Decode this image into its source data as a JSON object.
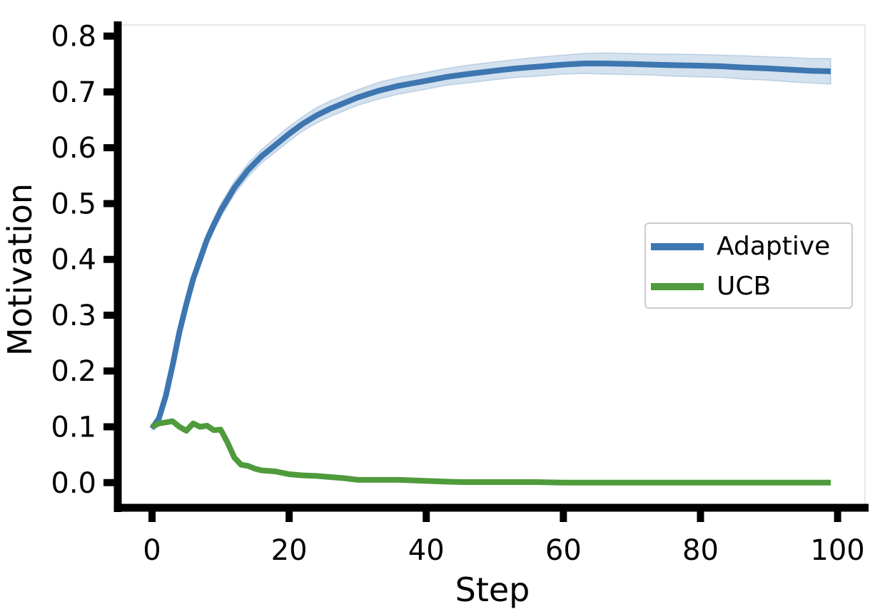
{
  "chart_data": {
    "type": "line",
    "title": "",
    "xlabel": "Step",
    "ylabel": "Motivation",
    "xlim": [
      -5,
      104
    ],
    "ylim": [
      -0.045,
      0.82
    ],
    "xticks": [
      0,
      20,
      40,
      60,
      80,
      100
    ],
    "yticks": [
      0.0,
      0.1,
      0.2,
      0.3,
      0.4,
      0.5,
      0.6,
      0.7,
      0.8
    ],
    "grid": false,
    "legend_position": "center-right",
    "series": [
      {
        "name": "Adaptive",
        "color": "#3d76b0",
        "band_color": "#3d76b0",
        "x": [
          0,
          1,
          2,
          3,
          4,
          5,
          6,
          7,
          8,
          9,
          10,
          12,
          14,
          16,
          18,
          20,
          22,
          24,
          26,
          28,
          30,
          33,
          36,
          40,
          43,
          46,
          50,
          53,
          56,
          60,
          63,
          66,
          70,
          73,
          76,
          80,
          83,
          86,
          90,
          93,
          96,
          99
        ],
        "y": [
          0.097,
          0.115,
          0.155,
          0.21,
          0.27,
          0.32,
          0.365,
          0.4,
          0.435,
          0.462,
          0.487,
          0.528,
          0.56,
          0.585,
          0.605,
          0.625,
          0.643,
          0.658,
          0.67,
          0.68,
          0.69,
          0.702,
          0.711,
          0.72,
          0.727,
          0.732,
          0.738,
          0.742,
          0.745,
          0.749,
          0.751,
          0.751,
          0.75,
          0.749,
          0.748,
          0.747,
          0.746,
          0.744,
          0.742,
          0.74,
          0.738,
          0.737
        ],
        "band_halfwidth": [
          0.003,
          0.005,
          0.007,
          0.008,
          0.009,
          0.01,
          0.01,
          0.011,
          0.011,
          0.011,
          0.012,
          0.012,
          0.012,
          0.012,
          0.013,
          0.013,
          0.013,
          0.014,
          0.014,
          0.014,
          0.014,
          0.015,
          0.015,
          0.015,
          0.015,
          0.016,
          0.016,
          0.016,
          0.017,
          0.017,
          0.018,
          0.019,
          0.019,
          0.019,
          0.02,
          0.02,
          0.02,
          0.021,
          0.021,
          0.022,
          0.022,
          0.023
        ]
      },
      {
        "name": "UCB",
        "color": "#4f9b3c",
        "x": [
          0,
          1,
          2,
          3,
          4,
          5,
          6,
          7,
          8,
          9,
          10,
          11,
          12,
          13,
          14,
          15,
          16,
          18,
          20,
          22,
          24,
          26,
          28,
          30,
          33,
          36,
          40,
          45,
          50,
          56,
          60,
          70,
          80,
          90,
          99
        ],
        "y": [
          0.1,
          0.106,
          0.108,
          0.11,
          0.1,
          0.093,
          0.106,
          0.1,
          0.102,
          0.094,
          0.095,
          0.072,
          0.045,
          0.032,
          0.03,
          0.025,
          0.022,
          0.02,
          0.015,
          0.013,
          0.012,
          0.01,
          0.008,
          0.005,
          0.005,
          0.005,
          0.003,
          0.001,
          0.001,
          0.001,
          0.0,
          0.0,
          0.0,
          0.0,
          0.0
        ]
      }
    ]
  }
}
